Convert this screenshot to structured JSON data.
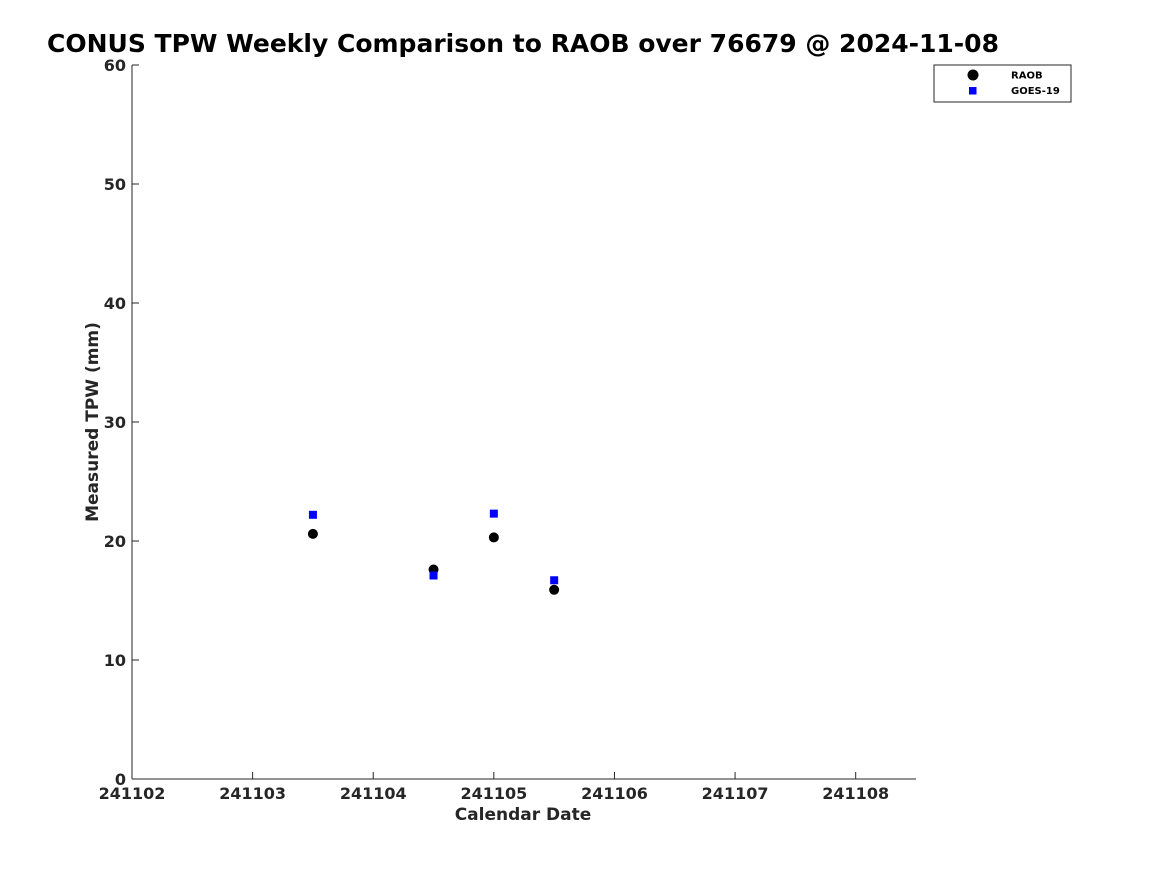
{
  "chart_data": {
    "type": "scatter",
    "title": "CONUS TPW Weekly Comparison to RAOB over 76679 @ 2024-11-08",
    "xlabel": "Calendar Date",
    "ylabel": "Measured TPW (mm)",
    "x_ticks": [
      {
        "value": 2,
        "label": "241102"
      },
      {
        "value": 3,
        "label": "241103"
      },
      {
        "value": 4,
        "label": "241104"
      },
      {
        "value": 5,
        "label": "241105"
      },
      {
        "value": 6,
        "label": "241106"
      },
      {
        "value": 7,
        "label": "241107"
      },
      {
        "value": 8,
        "label": "241108"
      }
    ],
    "xlim": [
      2,
      8.5
    ],
    "ylim": [
      0,
      60
    ],
    "y_ticks": [
      0,
      10,
      20,
      30,
      40,
      50,
      60
    ],
    "grid": false,
    "legend_position": "top-right, outside plot",
    "series": [
      {
        "name": "RAOB",
        "marker": "circle",
        "color": "#000000",
        "points": [
          {
            "x": 3.5,
            "y": 20.6
          },
          {
            "x": 4.5,
            "y": 17.6
          },
          {
            "x": 5.0,
            "y": 20.3
          },
          {
            "x": 5.5,
            "y": 15.9
          }
        ]
      },
      {
        "name": "GOES-19",
        "marker": "square",
        "color": "#0000ff",
        "points": [
          {
            "x": 3.5,
            "y": 22.2
          },
          {
            "x": 4.5,
            "y": 17.1
          },
          {
            "x": 5.0,
            "y": 22.3
          },
          {
            "x": 5.5,
            "y": 16.7
          }
        ]
      }
    ]
  }
}
